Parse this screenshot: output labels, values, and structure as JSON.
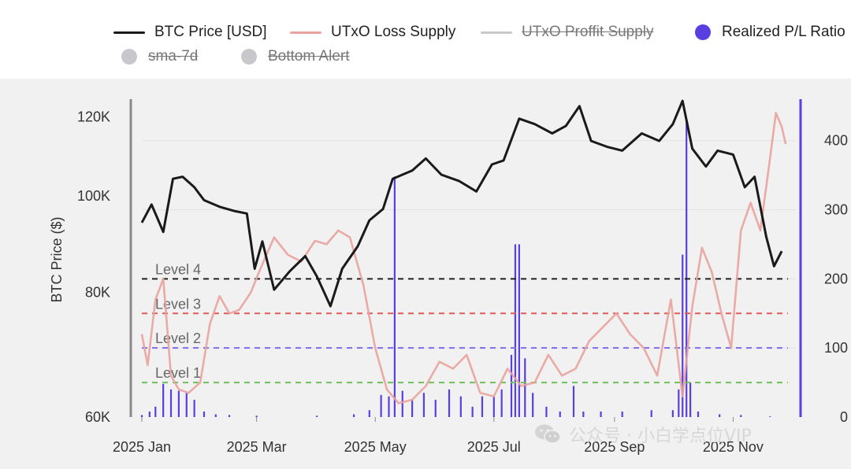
{
  "legend": {
    "items": [
      {
        "label": "BTC Price [USD]",
        "color": "#1a1a1a",
        "kind": "line",
        "active": true
      },
      {
        "label": "UTxO Loss Supply",
        "color": "#e9a29c",
        "kind": "line",
        "active": true
      },
      {
        "label": "UTxO Proffit Supply",
        "color": "#c8c8c8",
        "kind": "line",
        "active": false
      },
      {
        "label": "Realized P/L Ratio",
        "color": "#5a3fe0",
        "kind": "dot",
        "active": true
      },
      {
        "label": "sma-7d",
        "color": "#c8c8cc",
        "kind": "dot",
        "active": false
      },
      {
        "label": "Bottom Alert",
        "color": "#c8c8cc",
        "kind": "dot",
        "active": false
      }
    ]
  },
  "watermark": {
    "text": "公众号 · 小白学点位VIP"
  },
  "chart_data": {
    "type": "line",
    "x_ticks": [
      "2025 Jan",
      "2025 Mar",
      "2025 May",
      "2025 Jul",
      "2025 Sep",
      "2025 Nov"
    ],
    "x_range": [
      "2025-01-01",
      "2025-11-30"
    ],
    "y_left": {
      "label": "BTC Price ($)",
      "ticks": [
        "120K",
        "100K",
        "80K",
        "60K"
      ],
      "tick_values": [
        120000,
        100000,
        80000,
        60000
      ],
      "scale": "log",
      "range": [
        60000,
        125000
      ]
    },
    "y_right": {
      "ticks": [
        "400",
        "300",
        "200",
        "100",
        "0"
      ],
      "tick_values": [
        400,
        300,
        200,
        100,
        0
      ],
      "range": [
        0,
        460
      ]
    },
    "levels": [
      {
        "label": "Level 4",
        "value": 200,
        "color": "#222222"
      },
      {
        "label": "Level 3",
        "value": 150,
        "color": "#e05a5a"
      },
      {
        "label": "Level 2",
        "value": 100,
        "color": "#7f6bea"
      },
      {
        "label": "Level 1",
        "value": 50,
        "color": "#6fbf5a"
      }
    ],
    "series": [
      {
        "name": "BTC Price [USD]",
        "axis": "left",
        "color": "#1a1a1a",
        "points": [
          [
            "2025-01-01",
            94000
          ],
          [
            "2025-01-06",
            98000
          ],
          [
            "2025-01-12",
            92000
          ],
          [
            "2025-01-17",
            104000
          ],
          [
            "2025-01-22",
            104500
          ],
          [
            "2025-01-28",
            102000
          ],
          [
            "2025-02-02",
            99000
          ],
          [
            "2025-02-10",
            97500
          ],
          [
            "2025-02-18",
            96500
          ],
          [
            "2025-02-24",
            96000
          ],
          [
            "2025-02-28",
            84500
          ],
          [
            "2025-03-04",
            90000
          ],
          [
            "2025-03-10",
            80500
          ],
          [
            "2025-03-18",
            84000
          ],
          [
            "2025-03-26",
            87000
          ],
          [
            "2025-04-01",
            83000
          ],
          [
            "2025-04-08",
            77500
          ],
          [
            "2025-04-14",
            84500
          ],
          [
            "2025-04-22",
            89000
          ],
          [
            "2025-04-28",
            94500
          ],
          [
            "2025-05-05",
            97000
          ],
          [
            "2025-05-10",
            104000
          ],
          [
            "2025-05-20",
            106000
          ],
          [
            "2025-05-27",
            109000
          ],
          [
            "2025-06-04",
            105000
          ],
          [
            "2025-06-13",
            103500
          ],
          [
            "2025-06-22",
            101000
          ],
          [
            "2025-06-30",
            107500
          ],
          [
            "2025-07-06",
            108500
          ],
          [
            "2025-07-14",
            119500
          ],
          [
            "2025-07-22",
            118000
          ],
          [
            "2025-07-31",
            115500
          ],
          [
            "2025-08-07",
            117500
          ],
          [
            "2025-08-14",
            123000
          ],
          [
            "2025-08-20",
            113500
          ],
          [
            "2025-08-28",
            112000
          ],
          [
            "2025-09-05",
            111000
          ],
          [
            "2025-09-15",
            115500
          ],
          [
            "2025-09-24",
            113500
          ],
          [
            "2025-10-01",
            118000
          ],
          [
            "2025-10-06",
            124500
          ],
          [
            "2025-10-11",
            111500
          ],
          [
            "2025-10-18",
            107000
          ],
          [
            "2025-10-24",
            111000
          ],
          [
            "2025-11-01",
            110000
          ],
          [
            "2025-11-07",
            102000
          ],
          [
            "2025-11-12",
            104500
          ],
          [
            "2025-11-18",
            91000
          ],
          [
            "2025-11-22",
            85000
          ],
          [
            "2025-11-26",
            88000
          ]
        ]
      },
      {
        "name": "UTxO Loss Supply",
        "axis": "right",
        "color": "#e9a29c",
        "points": [
          [
            "2025-01-01",
            120
          ],
          [
            "2025-01-04",
            75
          ],
          [
            "2025-01-08",
            170
          ],
          [
            "2025-01-12",
            200
          ],
          [
            "2025-01-16",
            60
          ],
          [
            "2025-01-20",
            40
          ],
          [
            "2025-01-25",
            35
          ],
          [
            "2025-01-31",
            50
          ],
          [
            "2025-02-05",
            135
          ],
          [
            "2025-02-10",
            175
          ],
          [
            "2025-02-15",
            150
          ],
          [
            "2025-02-20",
            155
          ],
          [
            "2025-02-26",
            180
          ],
          [
            "2025-03-03",
            215
          ],
          [
            "2025-03-10",
            260
          ],
          [
            "2025-03-17",
            235
          ],
          [
            "2025-03-24",
            225
          ],
          [
            "2025-03-31",
            255
          ],
          [
            "2025-04-06",
            250
          ],
          [
            "2025-04-12",
            270
          ],
          [
            "2025-04-18",
            260
          ],
          [
            "2025-04-25",
            190
          ],
          [
            "2025-05-01",
            100
          ],
          [
            "2025-05-07",
            40
          ],
          [
            "2025-05-13",
            20
          ],
          [
            "2025-05-20",
            25
          ],
          [
            "2025-05-27",
            45
          ],
          [
            "2025-06-03",
            80
          ],
          [
            "2025-06-10",
            70
          ],
          [
            "2025-06-17",
            90
          ],
          [
            "2025-06-24",
            35
          ],
          [
            "2025-07-01",
            30
          ],
          [
            "2025-07-08",
            70
          ],
          [
            "2025-07-15",
            45
          ],
          [
            "2025-07-22",
            50
          ],
          [
            "2025-07-29",
            90
          ],
          [
            "2025-08-05",
            60
          ],
          [
            "2025-08-12",
            70
          ],
          [
            "2025-08-19",
            110
          ],
          [
            "2025-08-26",
            130
          ],
          [
            "2025-09-02",
            150
          ],
          [
            "2025-09-09",
            120
          ],
          [
            "2025-09-16",
            100
          ],
          [
            "2025-09-23",
            60
          ],
          [
            "2025-09-30",
            170
          ],
          [
            "2025-10-06",
            30
          ],
          [
            "2025-10-11",
            160
          ],
          [
            "2025-10-16",
            245
          ],
          [
            "2025-10-21",
            210
          ],
          [
            "2025-10-26",
            150
          ],
          [
            "2025-10-31",
            100
          ],
          [
            "2025-11-05",
            270
          ],
          [
            "2025-11-10",
            310
          ],
          [
            "2025-11-15",
            270
          ],
          [
            "2025-11-20",
            375
          ],
          [
            "2025-11-23",
            440
          ],
          [
            "2025-11-26",
            420
          ],
          [
            "2025-11-28",
            395
          ]
        ]
      }
    ],
    "bars": {
      "name": "Realized P/L Ratio",
      "axis": "right",
      "color": "#5a3fe0",
      "points": [
        [
          "2025-01-01",
          3
        ],
        [
          "2025-01-05",
          8
        ],
        [
          "2025-01-08",
          15
        ],
        [
          "2025-01-12",
          48
        ],
        [
          "2025-01-16",
          40
        ],
        [
          "2025-01-20",
          38
        ],
        [
          "2025-01-24",
          35
        ],
        [
          "2025-01-28",
          25
        ],
        [
          "2025-02-02",
          8
        ],
        [
          "2025-02-08",
          4
        ],
        [
          "2025-02-15",
          3
        ],
        [
          "2025-03-01",
          2
        ],
        [
          "2025-04-01",
          2
        ],
        [
          "2025-04-20",
          4
        ],
        [
          "2025-04-28",
          10
        ],
        [
          "2025-05-04",
          32
        ],
        [
          "2025-05-08",
          30
        ],
        [
          "2025-05-11",
          348
        ],
        [
          "2025-05-15",
          38
        ],
        [
          "2025-05-20",
          25
        ],
        [
          "2025-05-26",
          35
        ],
        [
          "2025-06-01",
          25
        ],
        [
          "2025-06-08",
          40
        ],
        [
          "2025-06-14",
          30
        ],
        [
          "2025-06-20",
          15
        ],
        [
          "2025-06-25",
          30
        ],
        [
          "2025-07-01",
          30
        ],
        [
          "2025-07-05",
          40
        ],
        [
          "2025-07-10",
          90
        ],
        [
          "2025-07-12",
          250
        ],
        [
          "2025-07-14",
          250
        ],
        [
          "2025-07-17",
          85
        ],
        [
          "2025-07-21",
          35
        ],
        [
          "2025-07-28",
          15
        ],
        [
          "2025-08-04",
          8
        ],
        [
          "2025-08-11",
          45
        ],
        [
          "2025-08-16",
          8
        ],
        [
          "2025-08-25",
          8
        ],
        [
          "2025-09-05",
          8
        ],
        [
          "2025-09-20",
          10
        ],
        [
          "2025-10-01",
          10
        ],
        [
          "2025-10-04",
          40
        ],
        [
          "2025-10-06",
          235
        ],
        [
          "2025-10-08",
          430
        ],
        [
          "2025-10-10",
          50
        ],
        [
          "2025-10-14",
          8
        ],
        [
          "2025-10-25",
          4
        ],
        [
          "2025-11-05",
          3
        ],
        [
          "2025-11-20",
          1
        ]
      ]
    }
  }
}
